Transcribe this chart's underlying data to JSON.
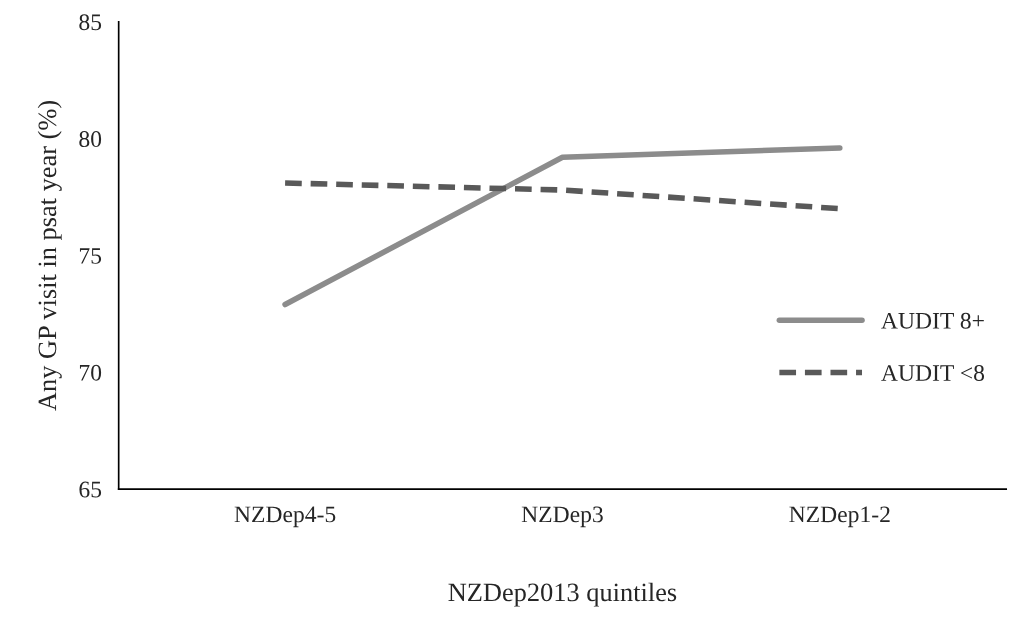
{
  "chart_data": {
    "type": "line",
    "xlabel": "NZDep2013 quintiles",
    "ylabel": "Any GP visit in psat year (%)",
    "categories": [
      "NZDep4-5",
      "NZDep3",
      "NZDep1-2"
    ],
    "series": [
      {
        "name": "AUDIT 8+",
        "color": "#8c8c8c",
        "values": [
          72.9,
          79.2,
          79.6
        ],
        "line_style": "solid"
      },
      {
        "name": "AUDIT <8",
        "color": "#595959",
        "values": [
          78.1,
          77.8,
          77.0
        ],
        "line_style": "dashed"
      }
    ],
    "ylim": [
      65,
      85
    ],
    "yticks": [
      65,
      70,
      75,
      80,
      85
    ],
    "grid": false,
    "legend": "right",
    "marker": "none"
  }
}
